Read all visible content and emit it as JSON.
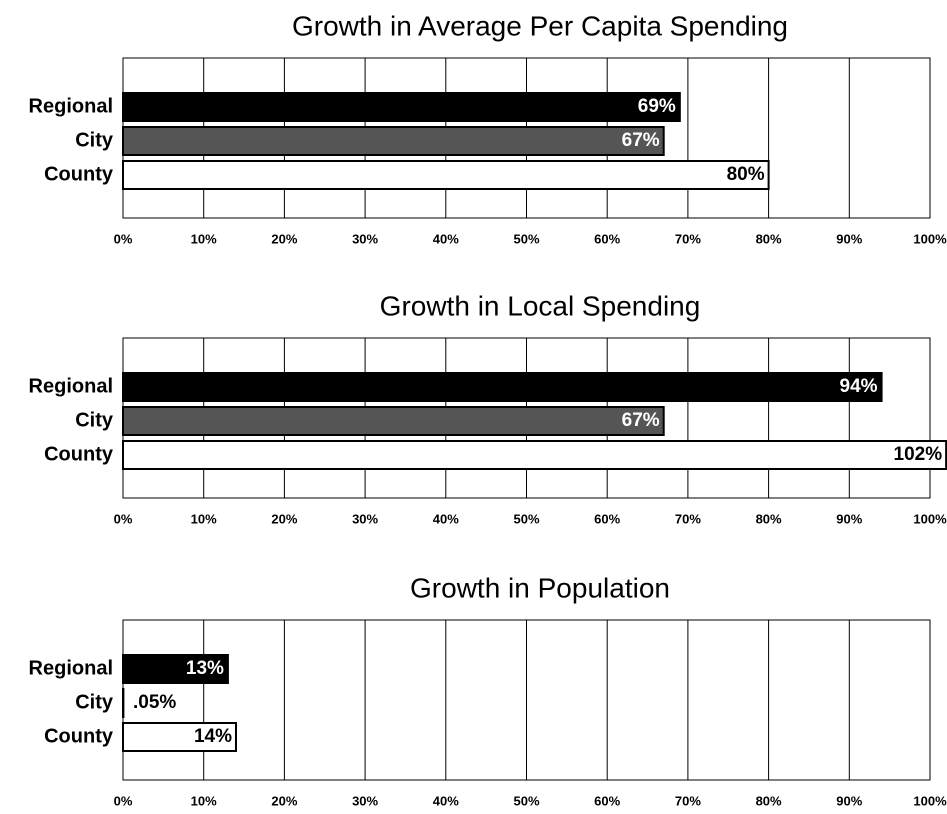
{
  "chart_data": [
    {
      "type": "barh",
      "title": "Growth in Average Per Capita Spending",
      "categories": [
        "Regional",
        "City",
        "County"
      ],
      "values": [
        69,
        67,
        80
      ],
      "value_labels": [
        "69%",
        "67%",
        "80%"
      ],
      "colors": [
        "#000000",
        "#555555",
        "#ffffff"
      ],
      "xlim": [
        0,
        100
      ],
      "xticks": [
        {
          "value": 0,
          "label": "0%"
        },
        {
          "value": 10,
          "label": "10%"
        },
        {
          "value": 20,
          "label": "20%"
        },
        {
          "value": 30,
          "label": "30%"
        },
        {
          "value": 40,
          "label": "40%"
        },
        {
          "value": 50,
          "label": "50%"
        },
        {
          "value": 60,
          "label": "60%"
        },
        {
          "value": 70,
          "label": "70%"
        },
        {
          "value": 80,
          "label": "80%"
        },
        {
          "value": 90,
          "label": "90%"
        },
        {
          "value": 100,
          "label": "100%"
        }
      ],
      "grid": true
    },
    {
      "type": "barh",
      "title": "Growth in Local Spending",
      "categories": [
        "Regional",
        "City",
        "County"
      ],
      "values": [
        94,
        67,
        102
      ],
      "value_labels": [
        "94%",
        "67%",
        "102%"
      ],
      "colors": [
        "#000000",
        "#555555",
        "#ffffff"
      ],
      "xlim": [
        0,
        100
      ],
      "xticks": [
        {
          "value": 0,
          "label": "0%"
        },
        {
          "value": 10,
          "label": "10%"
        },
        {
          "value": 20,
          "label": "20%"
        },
        {
          "value": 30,
          "label": "30%"
        },
        {
          "value": 40,
          "label": "40%"
        },
        {
          "value": 50,
          "label": "50%"
        },
        {
          "value": 60,
          "label": "60%"
        },
        {
          "value": 70,
          "label": "70%"
        },
        {
          "value": 80,
          "label": "80%"
        },
        {
          "value": 90,
          "label": "90%"
        },
        {
          "value": 100,
          "label": "100%"
        }
      ],
      "grid": true
    },
    {
      "type": "barh",
      "title": "Growth in Population",
      "categories": [
        "Regional",
        "City",
        "County"
      ],
      "values": [
        13,
        0.05,
        14
      ],
      "value_labels": [
        "13%",
        ".05%",
        "14%"
      ],
      "colors": [
        "#000000",
        "#555555",
        "#ffffff"
      ],
      "xlim": [
        0,
        100
      ],
      "xticks": [
        {
          "value": 0,
          "label": "0%"
        },
        {
          "value": 10,
          "label": "10%"
        },
        {
          "value": 20,
          "label": "20%"
        },
        {
          "value": 30,
          "label": "30%"
        },
        {
          "value": 40,
          "label": "40%"
        },
        {
          "value": 50,
          "label": "50%"
        },
        {
          "value": 60,
          "label": "60%"
        },
        {
          "value": 70,
          "label": "70%"
        },
        {
          "value": 80,
          "label": "80%"
        },
        {
          "value": 90,
          "label": "90%"
        },
        {
          "value": 100,
          "label": "100%"
        }
      ],
      "grid": true
    }
  ]
}
